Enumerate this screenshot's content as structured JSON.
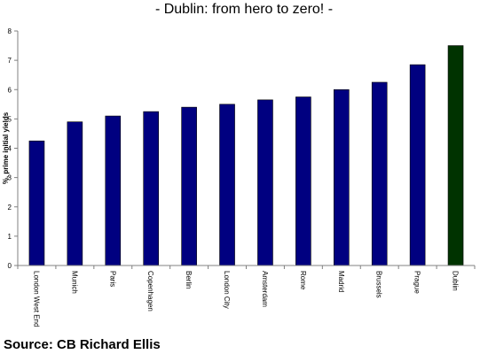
{
  "header": {
    "title": "- Dublin: from hero to zero! -"
  },
  "footer": {
    "source": "Source: CB Richard Ellis"
  },
  "colors": {
    "bar": "#000080",
    "highlight": "#003300",
    "axis": "#808080"
  },
  "chart_data": {
    "type": "bar",
    "title": "- Dublin: from hero to zero! -",
    "xlabel": "",
    "ylabel": "%, prime initial yields",
    "ylim": [
      0,
      8
    ],
    "yticks": [
      0,
      1,
      2,
      3,
      4,
      5,
      6,
      7,
      8
    ],
    "grid": false,
    "legend": "none",
    "categories": [
      "London West End",
      "Munich",
      "Paris",
      "Copenhagen",
      "Berlin",
      "London City",
      "Amsterdam",
      "Rome",
      "Madrid",
      "Brussels",
      "Prague",
      "Dublin"
    ],
    "values": [
      4.25,
      4.9,
      5.1,
      5.25,
      5.4,
      5.5,
      5.65,
      5.75,
      6.0,
      6.25,
      6.85,
      7.5
    ],
    "highlight_category": "Dublin"
  }
}
